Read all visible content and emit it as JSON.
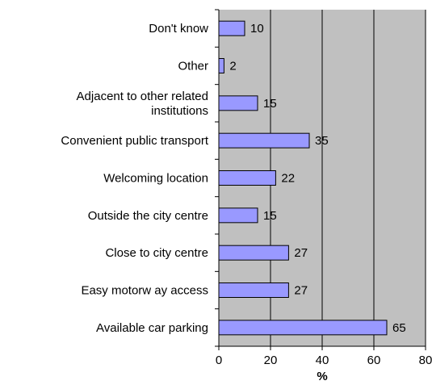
{
  "chart_data": {
    "type": "bar",
    "orientation": "horizontal",
    "categories": [
      "Don't know",
      "Other",
      "Adjacent to other related institutions",
      "Convenient public transport",
      "Welcoming location",
      "Outside the city centre",
      "Close to city centre",
      "Easy motorw ay access",
      "Available car parking"
    ],
    "category_lines": [
      [
        "Don't know"
      ],
      [
        "Other"
      ],
      [
        "Adjacent to other related",
        "institutions"
      ],
      [
        "Convenient public transport"
      ],
      [
        "Welcoming location"
      ],
      [
        "Outside the city centre"
      ],
      [
        "Close to city centre"
      ],
      [
        "Easy motorw ay access"
      ],
      [
        "Available car parking"
      ]
    ],
    "values": [
      10,
      2,
      15,
      35,
      22,
      15,
      27,
      27,
      65
    ],
    "data_labels": [
      "10",
      "2",
      "15",
      "35",
      "22",
      "15",
      "27",
      "27",
      "65"
    ],
    "xlabel": "%",
    "xlim": [
      0,
      80
    ],
    "xticks": [
      0,
      20,
      40,
      60,
      80
    ],
    "xtick_labels": [
      "0",
      "20",
      "40",
      "60",
      "80"
    ],
    "grid": "vertical",
    "legend": "none",
    "colors": {
      "bar_fill": "#9999ff",
      "bar_stroke": "#000000",
      "plot_bg": "#c0c0c0",
      "grid": "#000000"
    }
  }
}
